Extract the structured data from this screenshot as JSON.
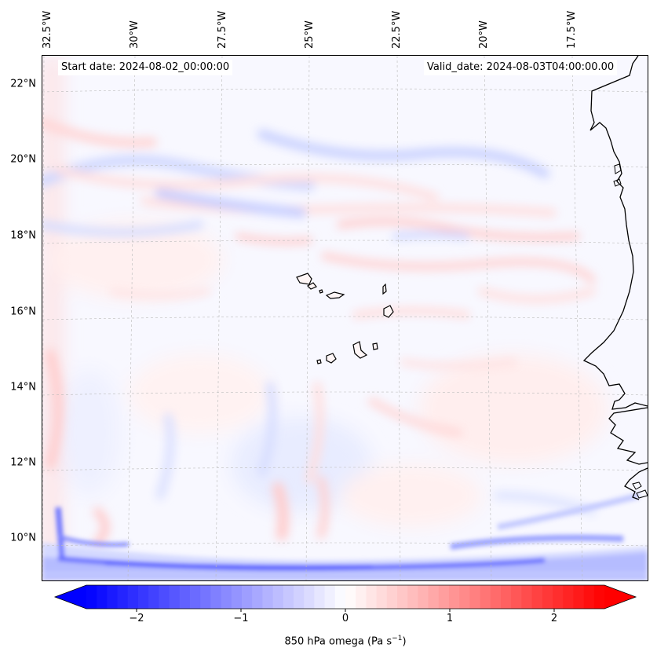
{
  "map": {
    "longitude_labels": [
      "32.5°W",
      "30°W",
      "27.5°W",
      "25°W",
      "22.5°W",
      "20°W",
      "17.5°W"
    ],
    "latitude_labels": [
      "22°N",
      "20°N",
      "18°N",
      "16°N",
      "14°N",
      "12°N",
      "10°N"
    ],
    "start_date": "Start date: 2024-08-02_00:00:00",
    "valid_date": "Valid_date: 2024-08-03T04:00:00.00",
    "variable_label": "850 hPa omega (Pa s",
    "unit_exponent": "−1",
    "label_close": ")"
  },
  "colorbar": {
    "ticks": [
      "−2",
      "−1",
      "0",
      "1",
      "2"
    ],
    "range": [
      -2.5,
      2.5
    ],
    "colors": {
      "negative": "#0000ff",
      "neutral": "#ffffff",
      "positive": "#ff0000"
    }
  }
}
